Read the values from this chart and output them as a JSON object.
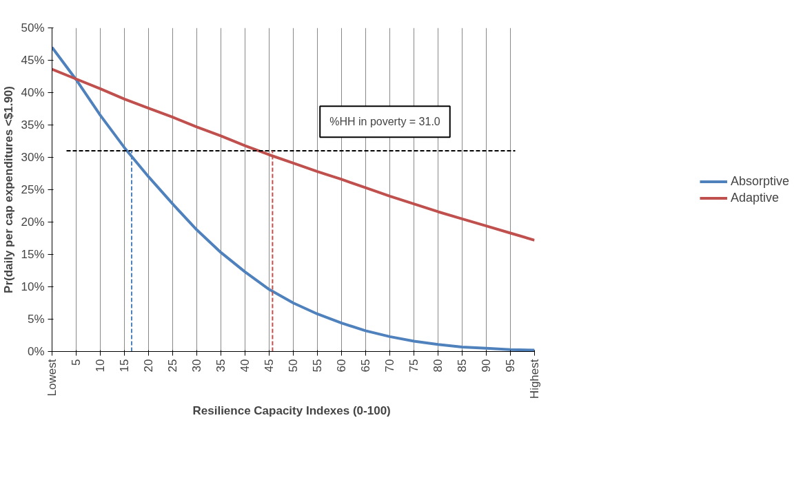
{
  "chart_data": {
    "type": "line",
    "xlabel": "Resilience Capacity  Indexes (0-100)",
    "ylabel": "Pr(daily per cap expenditures <$1.90)",
    "x": [
      0,
      5,
      10,
      15,
      20,
      25,
      30,
      35,
      40,
      45,
      50,
      55,
      60,
      65,
      70,
      75,
      80,
      85,
      90,
      95,
      100
    ],
    "series": [
      {
        "name": "Absorptive",
        "color": "#4f81bd",
        "values": [
          47,
          42,
          36.5,
          31.5,
          27,
          22.8,
          18.8,
          15.3,
          12.3,
          9.6,
          7.5,
          5.8,
          4.4,
          3.2,
          2.3,
          1.6,
          1.1,
          0.7,
          0.5,
          0.3,
          0.2
        ]
      },
      {
        "name": "Adaptive",
        "color": "#c0504d",
        "values": [
          43.6,
          42.1,
          40.6,
          39,
          37.6,
          36.2,
          34.7,
          33.3,
          31.8,
          30.4,
          29.1,
          27.8,
          26.6,
          25.3,
          24,
          22.8,
          21.6,
          20.5,
          19.4,
          18.3,
          17.2
        ]
      },
      {
        "type": "line",
        "x": [
          3,
          96
        ],
        "color": "#000000",
        "line_style": "dashed",
        "values": [
          31,
          31
        ]
      },
      {
        "type": "line",
        "x": [
          16.5,
          16.5
        ],
        "color": "#4f81bd",
        "line_style": "dashed",
        "values": [
          0,
          31
        ]
      },
      {
        "type": "line",
        "x": [
          45.7,
          45.7
        ],
        "color": "#c0504d",
        "line_style": "dashed",
        "values": [
          0,
          31
        ]
      }
    ],
    "annotations": [
      "%HH in poverty = 31.0"
    ],
    "xlim": [
      0,
      100
    ],
    "xticks": [
      {
        "value": 0,
        "label": "Lowest"
      },
      5,
      10,
      15,
      20,
      25,
      30,
      35,
      40,
      45,
      50,
      55,
      60,
      65,
      70,
      75,
      80,
      85,
      90,
      95,
      {
        "value": 100,
        "label": "Highest"
      }
    ],
    "ylim": [
      0,
      50
    ],
    "yticks": [
      {
        "value": 0,
        "label": "0%"
      },
      {
        "value": 5,
        "label": "5%"
      },
      {
        "value": 10,
        "label": "10%"
      },
      {
        "value": 15,
        "label": "15%"
      },
      {
        "value": 20,
        "label": "20%"
      },
      {
        "value": 25,
        "label": "25%"
      },
      {
        "value": 30,
        "label": "30%"
      },
      {
        "value": 35,
        "label": "35%"
      },
      {
        "value": 40,
        "label": "40%"
      },
      {
        "value": 45,
        "label": "45%"
      },
      {
        "value": 50,
        "label": "50%"
      }
    ],
    "grid": "x",
    "legend": "right",
    "marker": "none",
    "line_style": "solid"
  }
}
